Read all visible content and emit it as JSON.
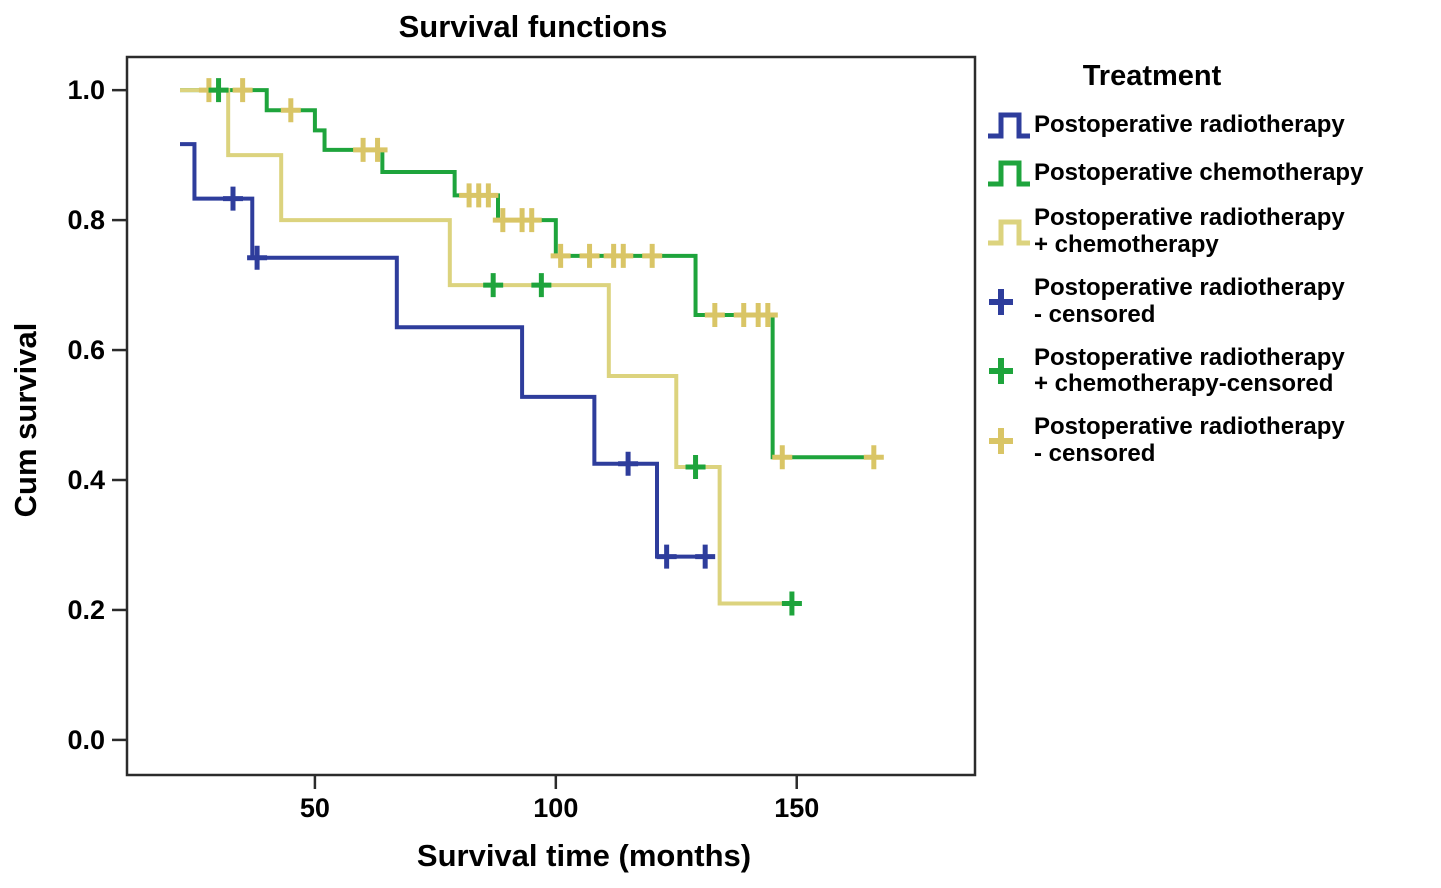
{
  "figure": {
    "title": "Survival functions",
    "x_axis_label": "Survival time (months)",
    "y_axis_label": "Cum survival"
  },
  "colors": {
    "blue": "#2E3D9C",
    "green": "#1EA43C",
    "yellow": "#DCD37E",
    "yellow_censor": "#D9C566",
    "frame": "#2B2B2B",
    "text": "#000000",
    "background": "#FFFFFF"
  },
  "legend": {
    "title": "Treatment",
    "items": [
      {
        "label": "Postoperative radiotherapy",
        "symbol": "step",
        "color_key": "blue"
      },
      {
        "label": "Postoperative chemotherapy",
        "symbol": "step",
        "color_key": "green"
      },
      {
        "label": "Postoperative radiotherapy\n+ chemotherapy",
        "symbol": "step",
        "color_key": "yellow"
      },
      {
        "label": "Postoperative radiotherapy\n- censored",
        "symbol": "plus",
        "color_key": "blue"
      },
      {
        "label": "Postoperative radiotherapy\n+ chemotherapy-censored",
        "symbol": "plus",
        "color_key": "green"
      },
      {
        "label": "Postoperative radiotherapy\n- censored",
        "symbol": "plus",
        "color_key": "yellow_censor"
      }
    ]
  },
  "chart_data": {
    "type": "line",
    "subtype": "kaplan-meier-step",
    "title": "Survival functions",
    "xlabel": "Survival time (months)",
    "ylabel": "Cum survival",
    "xlim": [
      11,
      187
    ],
    "ylim": [
      -0.054,
      1.051
    ],
    "x_ticks": [
      {
        "value": 50,
        "label": "50"
      },
      {
        "value": 100,
        "label": "100"
      },
      {
        "value": 150,
        "label": "150"
      }
    ],
    "y_ticks": [
      {
        "value": 0.0,
        "label": "0.0"
      },
      {
        "value": 0.2,
        "label": "0.2"
      },
      {
        "value": 0.4,
        "label": "0.4"
      },
      {
        "value": 0.6,
        "label": "0.6"
      },
      {
        "value": 0.8,
        "label": "0.8"
      },
      {
        "value": 1.0,
        "label": "1.0"
      }
    ],
    "grid": false,
    "legend_position": "right",
    "series": [
      {
        "key": "postop-radiotherapy",
        "name": "Postoperative radiotherapy",
        "color_key": "blue",
        "points": [
          [
            22,
            0.917
          ],
          [
            25,
            0.833
          ],
          [
            37,
            0.742
          ],
          [
            67,
            0.635
          ],
          [
            93,
            0.528
          ],
          [
            108,
            0.425
          ],
          [
            121,
            0.282
          ],
          [
            132,
            0.282
          ]
        ]
      },
      {
        "key": "postop-chemotherapy",
        "name": "Postoperative chemotherapy",
        "color_key": "green",
        "points": [
          [
            22,
            1.0
          ],
          [
            40,
            0.969
          ],
          [
            50,
            0.938
          ],
          [
            52,
            0.908
          ],
          [
            64,
            0.874
          ],
          [
            79,
            0.838
          ],
          [
            88,
            0.8
          ],
          [
            100,
            0.745
          ],
          [
            129,
            0.654
          ],
          [
            145,
            0.435
          ],
          [
            166,
            0.435
          ]
        ]
      },
      {
        "key": "postop-radio-chemo",
        "name": "Postoperative radiotherapy + chemotherapy",
        "color_key": "yellow",
        "points": [
          [
            22,
            1.0
          ],
          [
            32,
            0.9
          ],
          [
            43,
            0.8
          ],
          [
            78,
            0.7
          ],
          [
            111,
            0.56
          ],
          [
            125,
            0.42
          ],
          [
            134,
            0.21
          ],
          [
            149,
            0.21
          ]
        ]
      }
    ],
    "censored": [
      {
        "key": "censored-yellow",
        "name": "Postoperative radiotherapy - censored",
        "color_key": "yellow_censor",
        "points": [
          [
            28,
            1.0
          ],
          [
            35,
            1.0
          ],
          [
            45,
            0.969
          ],
          [
            60,
            0.908
          ],
          [
            63,
            0.908
          ],
          [
            82,
            0.838
          ],
          [
            84,
            0.838
          ],
          [
            86,
            0.838
          ],
          [
            89,
            0.8
          ],
          [
            93,
            0.8
          ],
          [
            95,
            0.8
          ],
          [
            101,
            0.745
          ],
          [
            107,
            0.745
          ],
          [
            112,
            0.745
          ],
          [
            114,
            0.745
          ],
          [
            120,
            0.745
          ],
          [
            133,
            0.654
          ],
          [
            139,
            0.654
          ],
          [
            142,
            0.654
          ],
          [
            144,
            0.654
          ],
          [
            147,
            0.435
          ],
          [
            166,
            0.435
          ]
        ]
      },
      {
        "key": "censored-green",
        "name": "Postoperative radiotherapy + chemotherapy-censored",
        "color_key": "green",
        "points": [
          [
            30,
            1.0
          ],
          [
            87,
            0.7
          ],
          [
            97,
            0.7
          ],
          [
            129,
            0.42
          ],
          [
            149,
            0.21
          ]
        ]
      },
      {
        "key": "censored-blue",
        "name": "Postoperative radiotherapy - censored",
        "color_key": "blue",
        "points": [
          [
            33,
            0.833
          ],
          [
            38,
            0.742
          ],
          [
            115,
            0.425
          ],
          [
            123,
            0.282
          ],
          [
            131,
            0.282
          ]
        ]
      }
    ]
  }
}
